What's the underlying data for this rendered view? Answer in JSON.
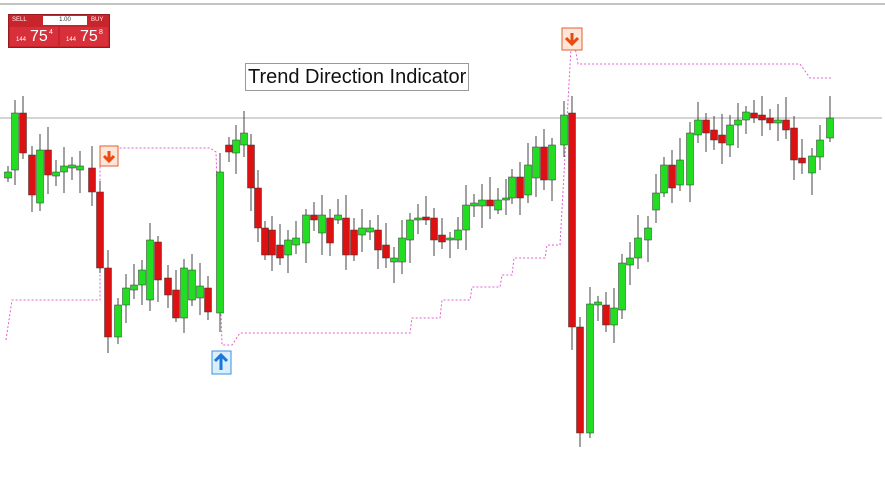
{
  "trade_panel": {
    "sell_label": "SELL",
    "lot": "1.00",
    "buy_label": "BUY",
    "sell_price": {
      "prefix": "144",
      "big": "75",
      "sup": "4"
    },
    "buy_price": {
      "prefix": "144",
      "big": "75",
      "sup": "8"
    }
  },
  "title": "Trend Direction Indicator"
}
